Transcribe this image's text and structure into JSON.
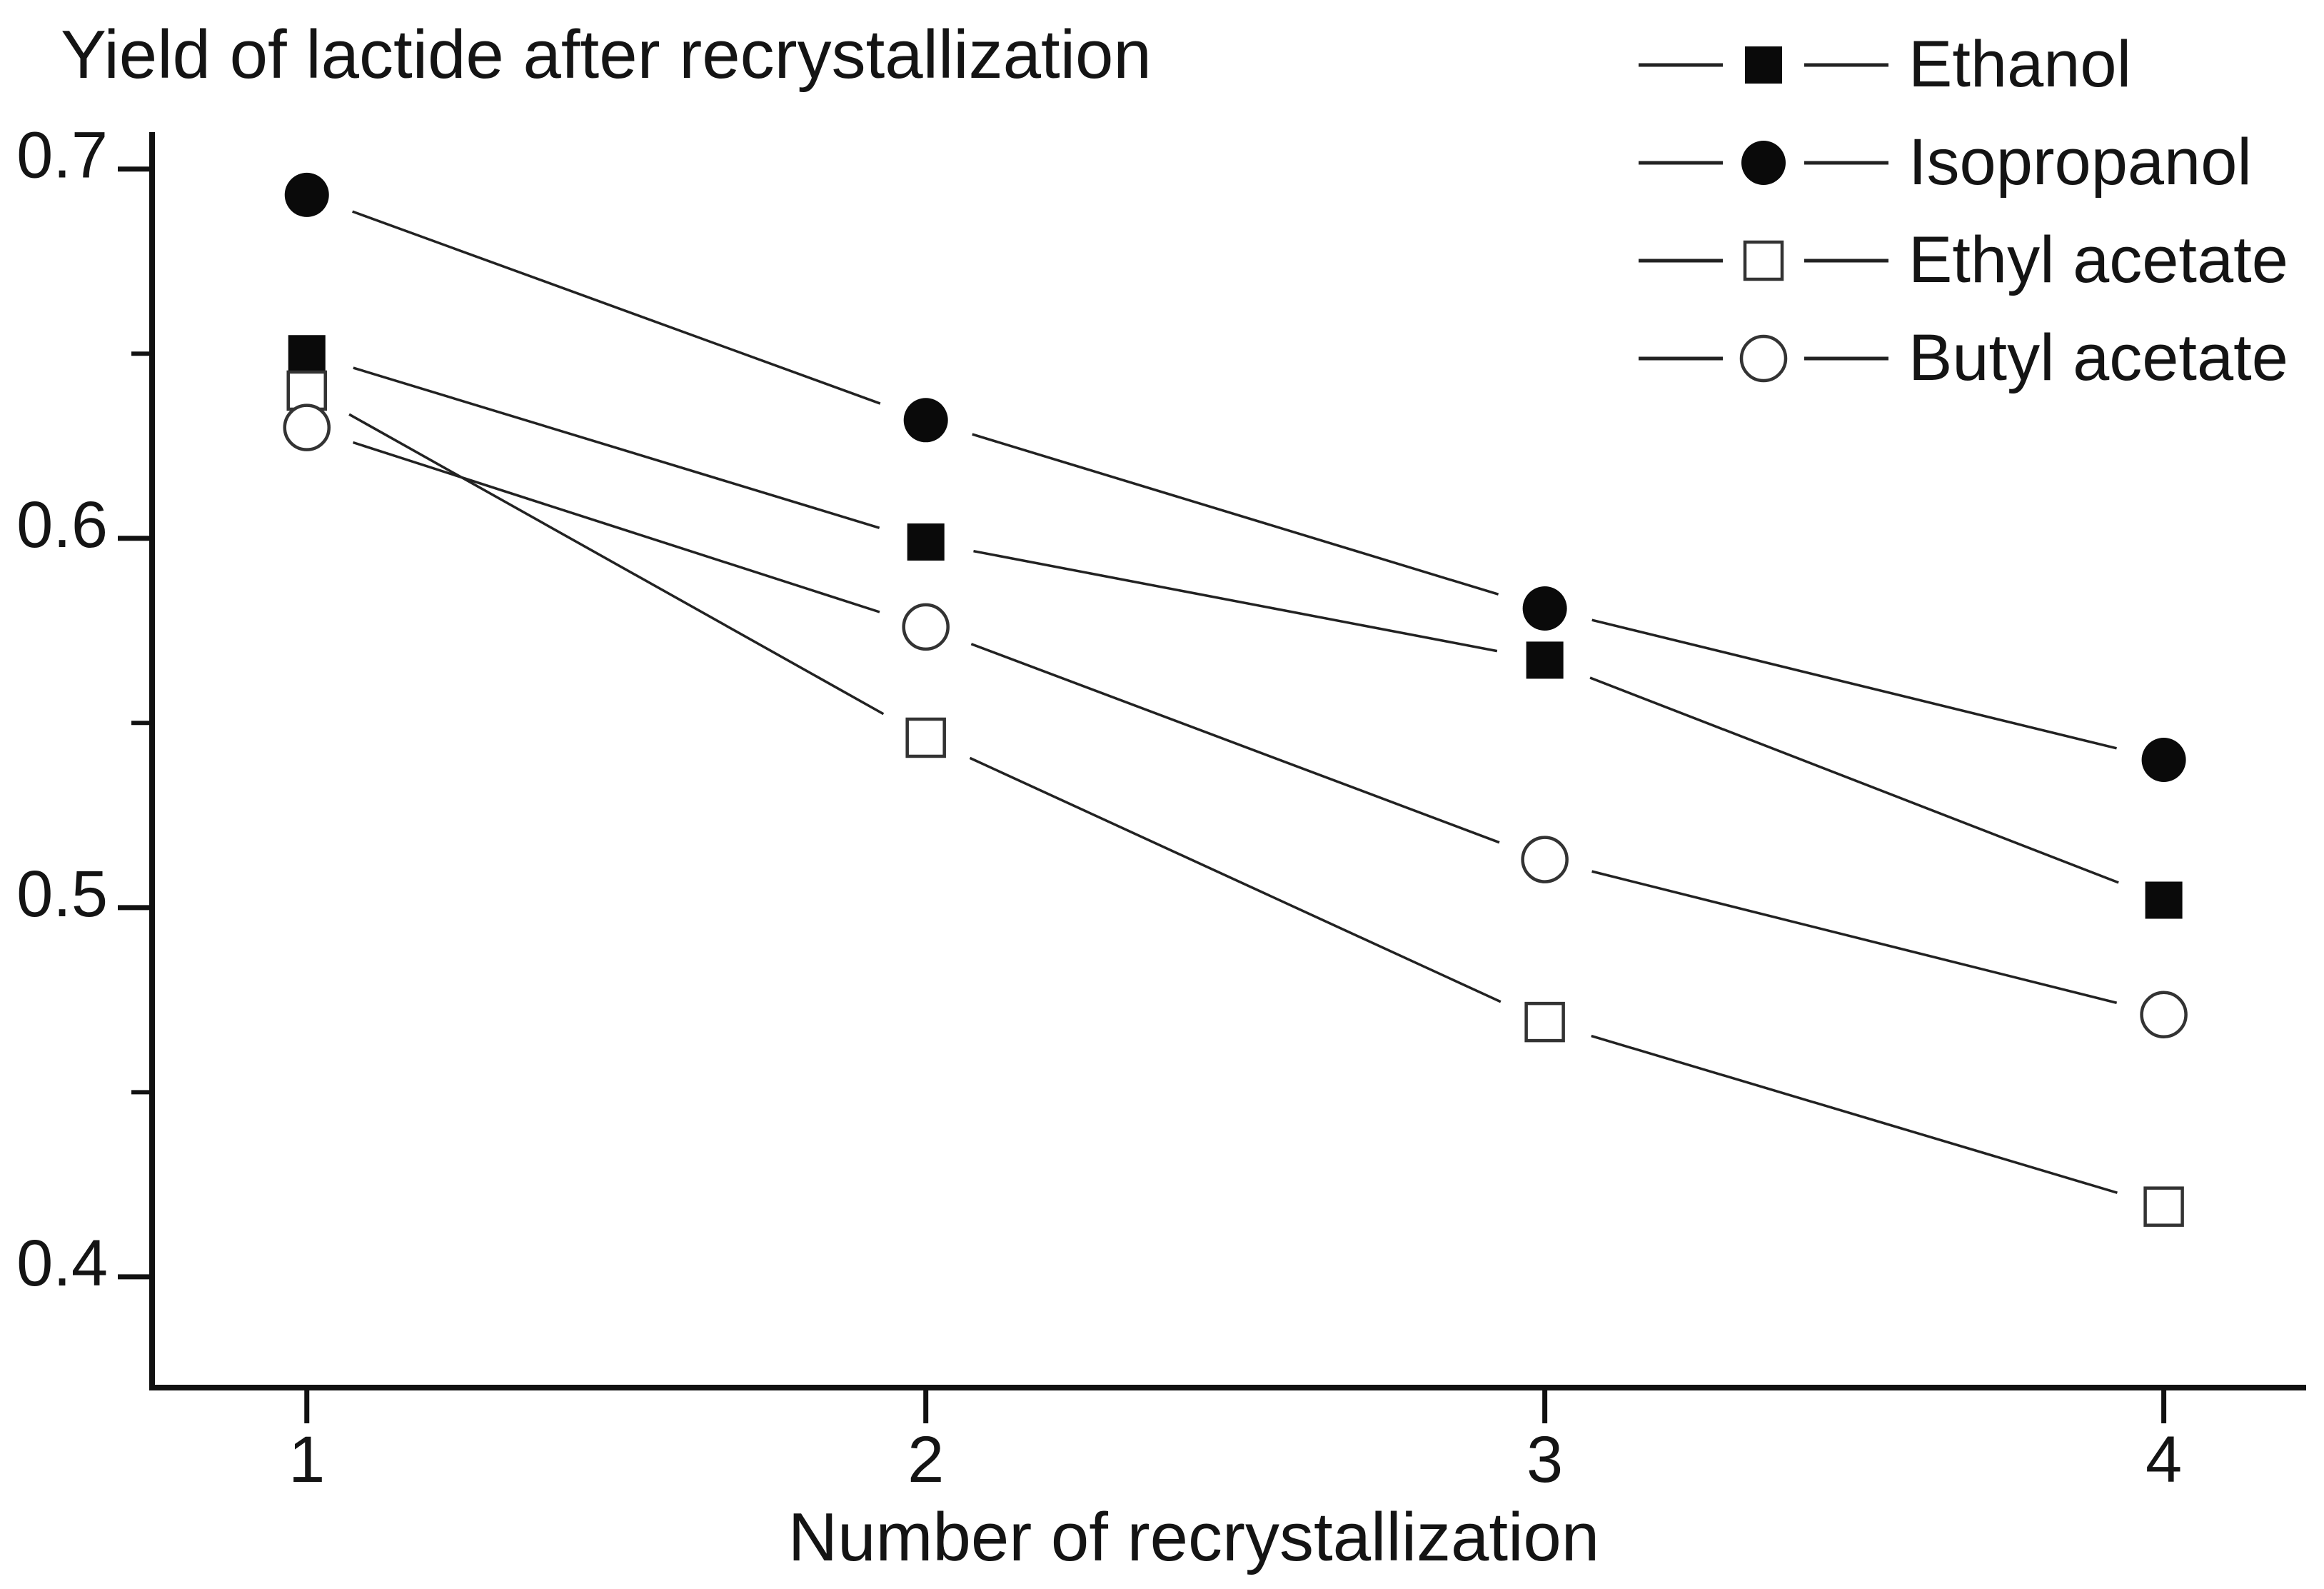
{
  "title": "Yield of lactide after recrystallization",
  "chart_data": {
    "type": "line",
    "title": "Yield of lactide after recrystallization",
    "xlabel": "Number of recrystallization",
    "ylabel": "",
    "x": [
      1,
      2,
      3,
      4
    ],
    "x_tick_labels": [
      "1",
      "2",
      "3",
      "4"
    ],
    "y_ticks": [
      0.7,
      0.6,
      0.5,
      0.4
    ],
    "y_tick_labels": [
      "0.7",
      "0.6",
      "0.5",
      "0.4"
    ],
    "y_minor_ticks": [
      0.65,
      0.55,
      0.45
    ],
    "xlim": [
      0.75,
      4.23
    ],
    "ylim": [
      0.37,
      0.71
    ],
    "grid": false,
    "legend_position": "top-right",
    "series": [
      {
        "name": "Ethanol",
        "marker": "filled-square",
        "values": [
          0.65,
          0.599,
          0.567,
          0.502
        ]
      },
      {
        "name": "Isopropanol",
        "marker": "filled-circle",
        "values": [
          0.693,
          0.632,
          0.581,
          0.54
        ]
      },
      {
        "name": "Ethyl acetate",
        "marker": "open-square",
        "values": [
          0.64,
          0.546,
          0.469,
          0.419
        ]
      },
      {
        "name": "Butyl acetate",
        "marker": "open-circle",
        "values": [
          0.63,
          0.576,
          0.513,
          0.471
        ]
      }
    ],
    "colors": {
      "axis": "#111111",
      "line": "#222222",
      "marker_fill": "#0a0a0a",
      "marker_open_stroke": "#333333",
      "text": "#141414",
      "background": "#ffffff"
    }
  }
}
